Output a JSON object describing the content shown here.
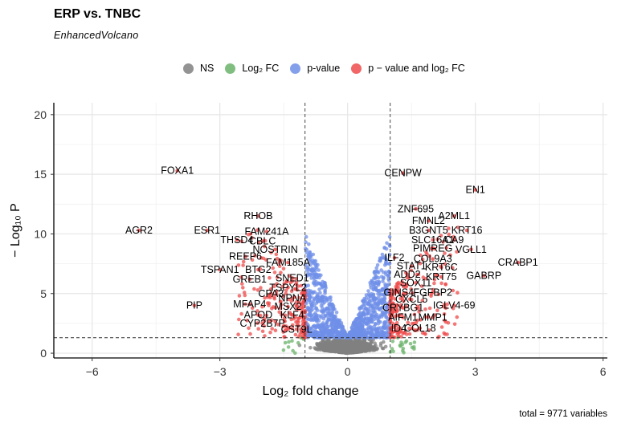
{
  "title": "ERP vs. TNBC",
  "subtitle": "EnhancedVolcano",
  "caption": "total = 9771 variables",
  "legend": [
    {
      "label": "NS",
      "color": "#808080"
    },
    {
      "label": "Log₂ FC",
      "color": "#6ab36a"
    },
    {
      "label": "p-value",
      "color": "#6f8fe8"
    },
    {
      "label": "p − value and log₂ FC",
      "color": "#ef4b4b"
    }
  ],
  "chart_data": {
    "type": "scatter",
    "title": "ERP vs. TNBC",
    "subtitle": "EnhancedVolcano",
    "xlabel": "Log₂ fold change",
    "ylabel": "− Log₁₀ P",
    "xlim": [
      -6.9,
      6.1
    ],
    "ylim": [
      -0.4,
      21.0
    ],
    "x_ticks": [
      -6,
      -3,
      0,
      3,
      6
    ],
    "y_ticks": [
      0,
      5,
      10,
      15,
      20
    ],
    "fc_cutoff": 1.0,
    "p_cutoff_neglog10": 1.3,
    "grid": true,
    "total_variables": 9771,
    "labeled_genes": [
      {
        "gene": "FOXA1",
        "x": -4.0,
        "y": 15.3
      },
      {
        "gene": "AGR2",
        "x": -4.9,
        "y": 10.3
      },
      {
        "gene": "ESR1",
        "x": -3.3,
        "y": 10.3
      },
      {
        "gene": "RHOB",
        "x": -2.1,
        "y": 11.5
      },
      {
        "gene": "FAM241A",
        "x": -1.9,
        "y": 10.2
      },
      {
        "gene": "THSD4",
        "x": -2.6,
        "y": 9.5
      },
      {
        "gene": "CBLC",
        "x": -2.0,
        "y": 9.4
      },
      {
        "gene": "NOSTRIN",
        "x": -1.7,
        "y": 8.7
      },
      {
        "gene": "REEP6",
        "x": -2.4,
        "y": 8.1
      },
      {
        "gene": "FAM185A",
        "x": -1.4,
        "y": 7.6
      },
      {
        "gene": "TSPAN1",
        "x": -3.0,
        "y": 7.0
      },
      {
        "gene": "BTG2",
        "x": -2.1,
        "y": 7.0
      },
      {
        "gene": "GREB1",
        "x": -2.3,
        "y": 6.2
      },
      {
        "gene": "SNED1",
        "x": -1.3,
        "y": 6.3
      },
      {
        "gene": "TSPYL2",
        "x": -1.4,
        "y": 5.5
      },
      {
        "gene": "CPA3",
        "x": -1.8,
        "y": 5.0
      },
      {
        "gene": "NPNA",
        "x": -1.3,
        "y": 4.6
      },
      {
        "gene": "MFAP4",
        "x": -2.3,
        "y": 4.1
      },
      {
        "gene": "MSX2",
        "x": -1.4,
        "y": 3.9
      },
      {
        "gene": "PIP",
        "x": -3.6,
        "y": 4.0
      },
      {
        "gene": "APOD",
        "x": -2.1,
        "y": 3.2
      },
      {
        "gene": "KLF4",
        "x": -1.3,
        "y": 3.2
      },
      {
        "gene": "CYP2B7P",
        "x": -2.0,
        "y": 2.5
      },
      {
        "gene": "CST9L",
        "x": -1.2,
        "y": 2.0
      },
      {
        "gene": "CENPW",
        "x": 1.3,
        "y": 15.1
      },
      {
        "gene": "EN1",
        "x": 3.0,
        "y": 13.7
      },
      {
        "gene": "ZNF695",
        "x": 1.6,
        "y": 12.1
      },
      {
        "gene": "A2ML1",
        "x": 2.5,
        "y": 11.5
      },
      {
        "gene": "FMNL2",
        "x": 1.9,
        "y": 11.1
      },
      {
        "gene": "B3GNT5",
        "x": 1.9,
        "y": 10.3
      },
      {
        "gene": "KRT16",
        "x": 2.8,
        "y": 10.3
      },
      {
        "gene": "SLC16A1",
        "x": 2.0,
        "y": 9.5
      },
      {
        "gene": "CA9",
        "x": 2.5,
        "y": 9.5
      },
      {
        "gene": "PIMREG",
        "x": 2.0,
        "y": 8.8
      },
      {
        "gene": "VGLL1",
        "x": 2.9,
        "y": 8.7
      },
      {
        "gene": "ILF2",
        "x": 1.1,
        "y": 8.0
      },
      {
        "gene": "COL9A3",
        "x": 2.0,
        "y": 7.9
      },
      {
        "gene": "CRABP1",
        "x": 4.0,
        "y": 7.6
      },
      {
        "gene": "STAT1",
        "x": 1.5,
        "y": 7.3
      },
      {
        "gene": "KRT6C",
        "x": 2.2,
        "y": 7.2
      },
      {
        "gene": "ADD2",
        "x": 1.4,
        "y": 6.6
      },
      {
        "gene": "KRT75",
        "x": 2.2,
        "y": 6.4
      },
      {
        "gene": "GABRP",
        "x": 3.2,
        "y": 6.5
      },
      {
        "gene": "SOX11",
        "x": 1.6,
        "y": 5.9
      },
      {
        "gene": "GINS4",
        "x": 1.2,
        "y": 5.1
      },
      {
        "gene": "FGFBP2",
        "x": 2.0,
        "y": 5.1
      },
      {
        "gene": "CXCL5",
        "x": 1.5,
        "y": 4.5
      },
      {
        "gene": "CRYBG1",
        "x": 1.3,
        "y": 3.8
      },
      {
        "gene": "IGLV4-69",
        "x": 2.5,
        "y": 4.0
      },
      {
        "gene": "AIFM1",
        "x": 1.3,
        "y": 3.0
      },
      {
        "gene": "MMP1",
        "x": 2.0,
        "y": 3.0
      },
      {
        "gene": "ID4",
        "x": 1.2,
        "y": 2.1
      },
      {
        "gene": "COL18",
        "x": 1.7,
        "y": 2.1
      }
    ]
  }
}
